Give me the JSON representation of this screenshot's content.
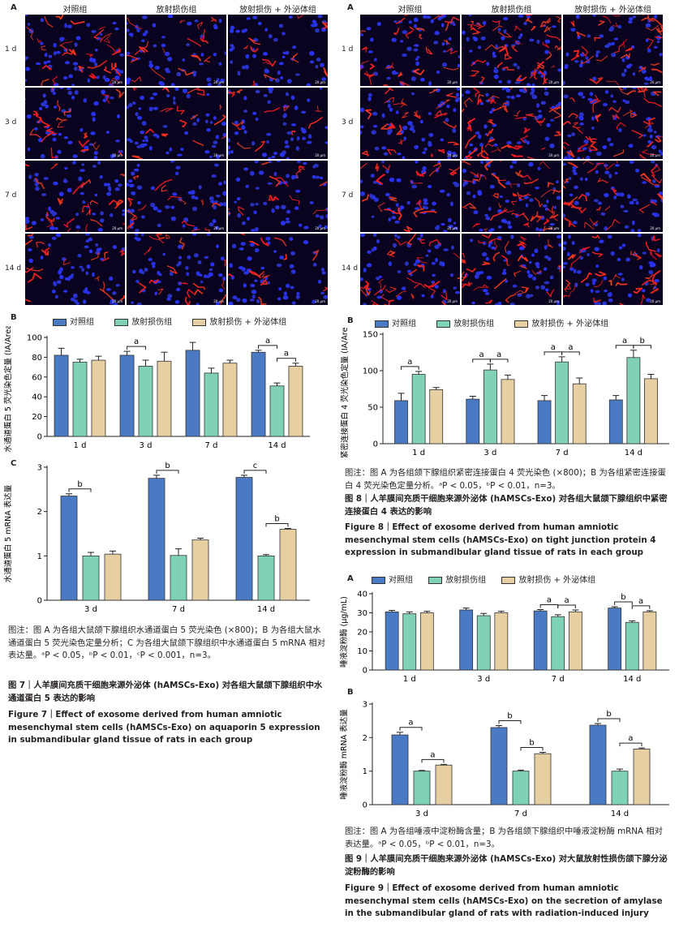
{
  "fig7": {
    "panelA": {
      "label": "A",
      "columns": [
        "对照组",
        "放射损伤组",
        "放射损伤 + 外泌体组"
      ],
      "rows": [
        "1 d",
        "3 d",
        "7 d",
        "14 d"
      ],
      "scale": "20 μm"
    },
    "panelB_label": "B",
    "panelC_label": "C",
    "legend": [
      "对照组",
      "放射损伤组",
      "放射损伤 + 外泌体组"
    ],
    "colors": {
      "control": "#4a7ac4",
      "injury": "#7fd1b8",
      "exo": "#e6cfa3"
    },
    "caption_note": "图注：图 A 为各组大鼠颌下腺组织水通道蛋白 5 荧光染色 (×800)；B 为各组大鼠水通道蛋白 5 荧光染色定量分析；C 为各组大鼠颌下腺组织中水通道蛋白 5 mRNA 相对表达量。ᵃP < 0.05，ᵇP < 0.01，ᶜP < 0.001，n=3。",
    "title_cn": "图 7｜人羊膜间充质干细胞来源外泌体 (hAMSCs-Exo) 对各组大鼠颌下腺组织中水通道蛋白 5 表达的影响",
    "title_en": "Figure 7｜Effect of exosome derived from human amniotic mesenchymal stem cells (hAMSCs-Exo) on aquaporin 5 expression in submandibular gland tissue of rats in each group"
  },
  "fig8": {
    "panelA": {
      "label": "A",
      "columns": [
        "对照组",
        "放射损伤组",
        "放射损伤 + 外泌体组"
      ],
      "rows": [
        "1 d",
        "3 d",
        "7 d",
        "14 d"
      ],
      "scale": "20 μm"
    },
    "panelB_label": "B",
    "legend": [
      "对照组",
      "放射损伤组",
      "放射损伤 + 外泌体组"
    ],
    "caption_note": "图注：图 A 为各组颌下腺组织紧密连接蛋白 4 荧光染色 (×800)；B 为各组紧密连接蛋白 4 荧光染色定量分析。ᵃP < 0.05，ᵇP < 0.01，n=3。",
    "title_cn": "图 8｜人羊膜间充质干细胞来源外泌体 (hAMSCs-Exo) 对各组大鼠颌下腺组织中紧密连接蛋白 4 表达的影响",
    "title_en": "Figure 8｜Effect of exosome derived from human amniotic mesenchymal stem cells (hAMSCs-Exo) on tight junction protein 4 expression in submandibular gland tissue of rats in each group"
  },
  "fig9": {
    "panelA_label": "A",
    "panelB_label": "B",
    "legend": [
      "对照组",
      "放射损伤组",
      "放射损伤 + 外泌体组"
    ],
    "caption_note": "图注：图 A 为各组唾液中淀粉酶含量；B 为各组颌下腺组织中唾液淀粉酶 mRNA 相对表达量。ᵃP < 0.05，ᵇP < 0.01，n=3。",
    "title_cn": "图 9｜人羊膜间充质干细胞来源外泌体 (hAMSCs-Exo) 对大鼠放射性损伤颌下腺分泌淀粉酶的影响",
    "title_en": "Figure 9｜Effect of exosome derived from human amniotic mesenchymal stem cells (hAMSCs-Exo) on the secretion of amylase in the submandibular gland of rats with radiation-induced injury"
  },
  "chart_data": [
    {
      "id": "fig7B",
      "type": "bar",
      "ylabel": "水通道蛋白 5 荧光染色定量 (IA/Area)",
      "categories": [
        "1 d",
        "3 d",
        "7 d",
        "14 d"
      ],
      "ylim": [
        0,
        100
      ],
      "yticks": [
        0,
        20,
        40,
        60,
        80,
        100
      ],
      "series": [
        {
          "name": "对照组",
          "values": [
            82,
            82,
            87,
            85
          ],
          "errors": [
            7,
            4,
            8,
            2
          ]
        },
        {
          "name": "放射损伤组",
          "values": [
            75,
            71,
            64,
            51
          ],
          "errors": [
            3,
            6,
            5,
            3
          ]
        },
        {
          "name": "放射损伤 + 外泌体组",
          "values": [
            77,
            76,
            74,
            71
          ],
          "errors": [
            4,
            9,
            3,
            3
          ]
        }
      ],
      "annotations": [
        {
          "category": 1,
          "from": 0,
          "to": 1,
          "text": "a"
        },
        {
          "category": 3,
          "from": 0,
          "to": 1,
          "text": "a"
        },
        {
          "category": 3,
          "from": 1,
          "to": 2,
          "text": "a"
        }
      ]
    },
    {
      "id": "fig7C",
      "type": "bar",
      "ylabel": "水通道蛋白 5 mRNA 表达量",
      "categories": [
        "3 d",
        "7 d",
        "14 d"
      ],
      "ylim": [
        0,
        3
      ],
      "yticks": [
        0,
        1,
        2,
        3
      ],
      "series": [
        {
          "name": "对照组",
          "values": [
            2.35,
            2.75,
            2.77
          ],
          "errors": [
            0.05,
            0.07,
            0.05
          ]
        },
        {
          "name": "放射损伤组",
          "values": [
            1.0,
            1.01,
            1.0
          ],
          "errors": [
            0.08,
            0.15,
            0.03
          ]
        },
        {
          "name": "放射损伤 + 外泌体组",
          "values": [
            1.04,
            1.36,
            1.6
          ],
          "errors": [
            0.07,
            0.04,
            0.02
          ]
        }
      ],
      "annotations": [
        {
          "category": 0,
          "from": 0,
          "to": 1,
          "text": "b"
        },
        {
          "category": 1,
          "from": 0,
          "to": 1,
          "text": "b"
        },
        {
          "category": 2,
          "from": 0,
          "to": 1,
          "text": "c"
        },
        {
          "category": 2,
          "from": 1,
          "to": 2,
          "text": "b"
        }
      ]
    },
    {
      "id": "fig8B",
      "type": "bar",
      "ylabel": "紧密连接蛋白 4 荧光染色定量 (IA/Area)",
      "categories": [
        "1 d",
        "3 d",
        "7 d",
        "14 d"
      ],
      "ylim": [
        0,
        150
      ],
      "yticks": [
        0,
        50,
        100,
        150
      ],
      "series": [
        {
          "name": "对照组",
          "values": [
            59,
            61,
            59,
            60
          ],
          "errors": [
            10,
            4,
            7,
            6
          ]
        },
        {
          "name": "放射损伤组",
          "values": [
            95,
            101,
            112,
            118
          ],
          "errors": [
            4,
            8,
            7,
            10
          ]
        },
        {
          "name": "放射损伤 + 外泌体组",
          "values": [
            74,
            88,
            82,
            89
          ],
          "errors": [
            3,
            6,
            8,
            6
          ]
        }
      ],
      "annotations": [
        {
          "category": 0,
          "from": 0,
          "to": 1,
          "text": "a"
        },
        {
          "category": 1,
          "from": 0,
          "to": 1,
          "text": "a"
        },
        {
          "category": 1,
          "from": 1,
          "to": 2,
          "text": "a"
        },
        {
          "category": 2,
          "from": 0,
          "to": 1,
          "text": "a"
        },
        {
          "category": 2,
          "from": 1,
          "to": 2,
          "text": "a"
        },
        {
          "category": 3,
          "from": 0,
          "to": 1,
          "text": "a"
        },
        {
          "category": 3,
          "from": 1,
          "to": 2,
          "text": "b"
        }
      ]
    },
    {
      "id": "fig9A",
      "type": "bar",
      "ylabel": "唾液淀粉酶 (μg/mL)",
      "categories": [
        "1 d",
        "3 d",
        "7 d",
        "14 d"
      ],
      "ylim": [
        0,
        40
      ],
      "yticks": [
        0,
        10,
        20,
        30,
        40
      ],
      "series": [
        {
          "name": "对照组",
          "values": [
            30.5,
            31.5,
            31,
            32.5
          ],
          "errors": [
            0.8,
            1.0,
            0.7,
            0.7
          ]
        },
        {
          "name": "放射损伤组",
          "values": [
            29.5,
            28.5,
            28,
            25
          ],
          "errors": [
            1.0,
            1.2,
            1.0,
            0.8
          ]
        },
        {
          "name": "放射损伤 + 外泌体组",
          "values": [
            30,
            30,
            30.5,
            30.5
          ],
          "errors": [
            0.8,
            0.8,
            1.0,
            0.6
          ]
        }
      ],
      "annotations": [
        {
          "category": 2,
          "from": 0,
          "to": 1,
          "text": "a"
        },
        {
          "category": 2,
          "from": 1,
          "to": 2,
          "text": "a"
        },
        {
          "category": 3,
          "from": 0,
          "to": 1,
          "text": "b"
        },
        {
          "category": 3,
          "from": 1,
          "to": 2,
          "text": "a"
        }
      ]
    },
    {
      "id": "fig9B",
      "type": "bar",
      "ylabel": "唾液淀粉酶 mRNA 表达量",
      "categories": [
        "3 d",
        "7 d",
        "14 d"
      ],
      "ylim": [
        0,
        3
      ],
      "yticks": [
        0,
        1,
        2,
        3
      ],
      "series": [
        {
          "name": "对照组",
          "values": [
            2.08,
            2.3,
            2.37
          ],
          "errors": [
            0.08,
            0.06,
            0.05
          ]
        },
        {
          "name": "放射损伤组",
          "values": [
            1.0,
            1.0,
            1.0
          ],
          "errors": [
            0.02,
            0.03,
            0.06
          ]
        },
        {
          "name": "放射损伤 + 外泌体组",
          "values": [
            1.18,
            1.52,
            1.66
          ],
          "errors": [
            0.02,
            0.04,
            0.03
          ]
        }
      ],
      "annotations": [
        {
          "category": 0,
          "from": 0,
          "to": 1,
          "text": "a"
        },
        {
          "category": 0,
          "from": 1,
          "to": 2,
          "text": "a"
        },
        {
          "category": 1,
          "from": 0,
          "to": 1,
          "text": "b"
        },
        {
          "category": 1,
          "from": 1,
          "to": 2,
          "text": "b"
        },
        {
          "category": 2,
          "from": 0,
          "to": 1,
          "text": "b"
        },
        {
          "category": 2,
          "from": 1,
          "to": 2,
          "text": "a"
        }
      ]
    }
  ]
}
